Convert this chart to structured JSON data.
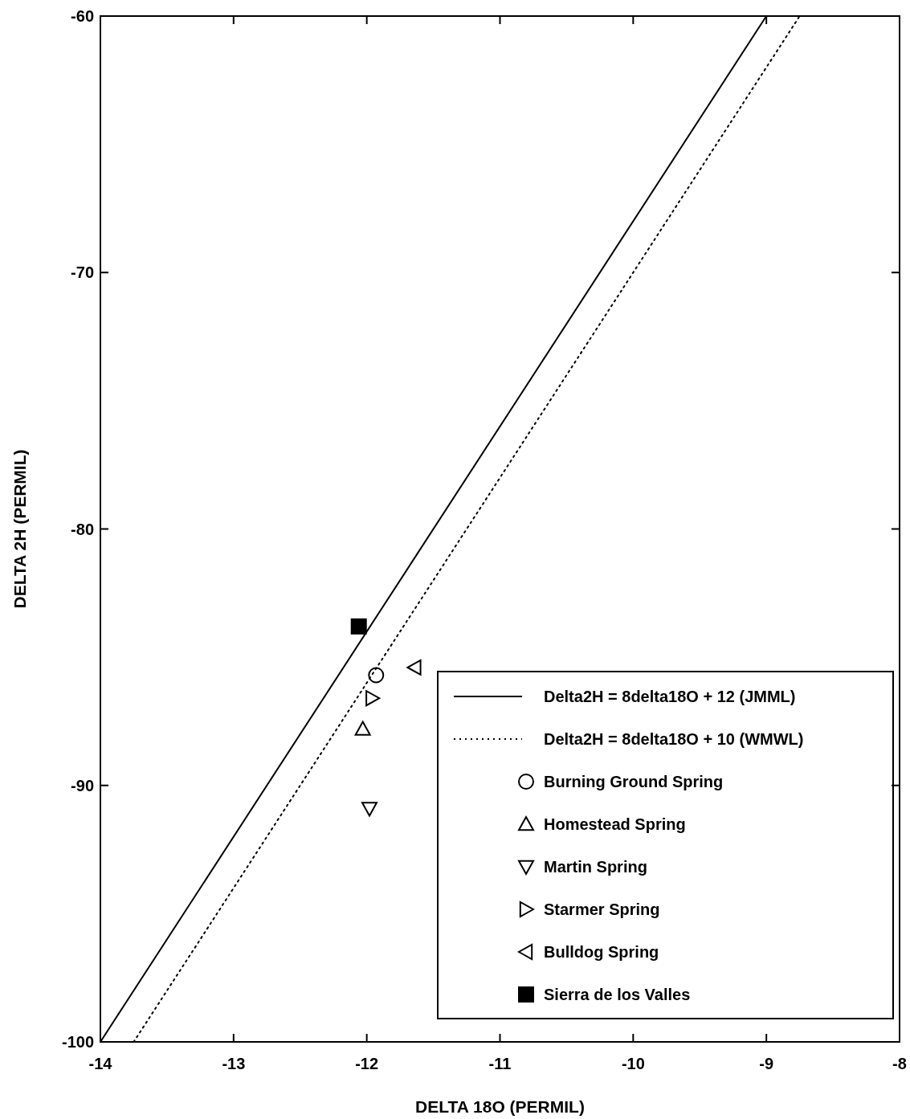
{
  "chart_data": {
    "type": "scatter",
    "xlabel": "DELTA 18O (PERMIL)",
    "ylabel": "DELTA 2H (PERMIL)",
    "xlim": [
      -14,
      -8
    ],
    "xticks": [
      -14,
      -13,
      -12,
      -11,
      -10,
      -9,
      -8
    ],
    "ylim": [
      -100,
      -60
    ],
    "yticks": [
      -100,
      -90,
      -80,
      -70,
      -60
    ],
    "grid": false,
    "legend": "bottom right",
    "series": [
      {
        "name": "Delta2H = 8delta18O + 12 (JMML)",
        "type": "line",
        "color": "#000000",
        "line_style": "solid",
        "marker": "none",
        "x": [
          -14,
          -9
        ],
        "values": [
          -100,
          -60
        ]
      },
      {
        "name": "Delta2H = 8delta18O + 10 (WMWL)",
        "type": "line",
        "color": "#000000",
        "line_style": "dotted",
        "marker": "none",
        "x": [
          -13.75,
          -8.75
        ],
        "values": [
          -100,
          -60
        ]
      },
      {
        "name": "Burning Ground Spring",
        "color": "#000000",
        "marker": "circle",
        "x": [
          -11.93
        ],
        "values": [
          -85.7
        ]
      },
      {
        "name": "Homestead Spring",
        "color": "#000000",
        "marker": "triangle",
        "x": [
          -12.03
        ],
        "values": [
          -87.8
        ]
      },
      {
        "name": "Martin Spring",
        "color": "#000000",
        "marker": "triangle-down",
        "x": [
          -11.98
        ],
        "values": [
          -90.9
        ]
      },
      {
        "name": "Starmer Spring",
        "color": "#000000",
        "marker": "triangle-right",
        "x": [
          -11.96
        ],
        "values": [
          -86.6
        ]
      },
      {
        "name": "Bulldog Spring",
        "color": "#000000",
        "marker": "triangle-left",
        "x": [
          -11.64
        ],
        "values": [
          -85.4
        ]
      },
      {
        "name": "Sierra de los Valles",
        "color": "#000000",
        "marker": "square",
        "x": [
          -12.06
        ],
        "values": [
          -83.8
        ]
      }
    ]
  }
}
